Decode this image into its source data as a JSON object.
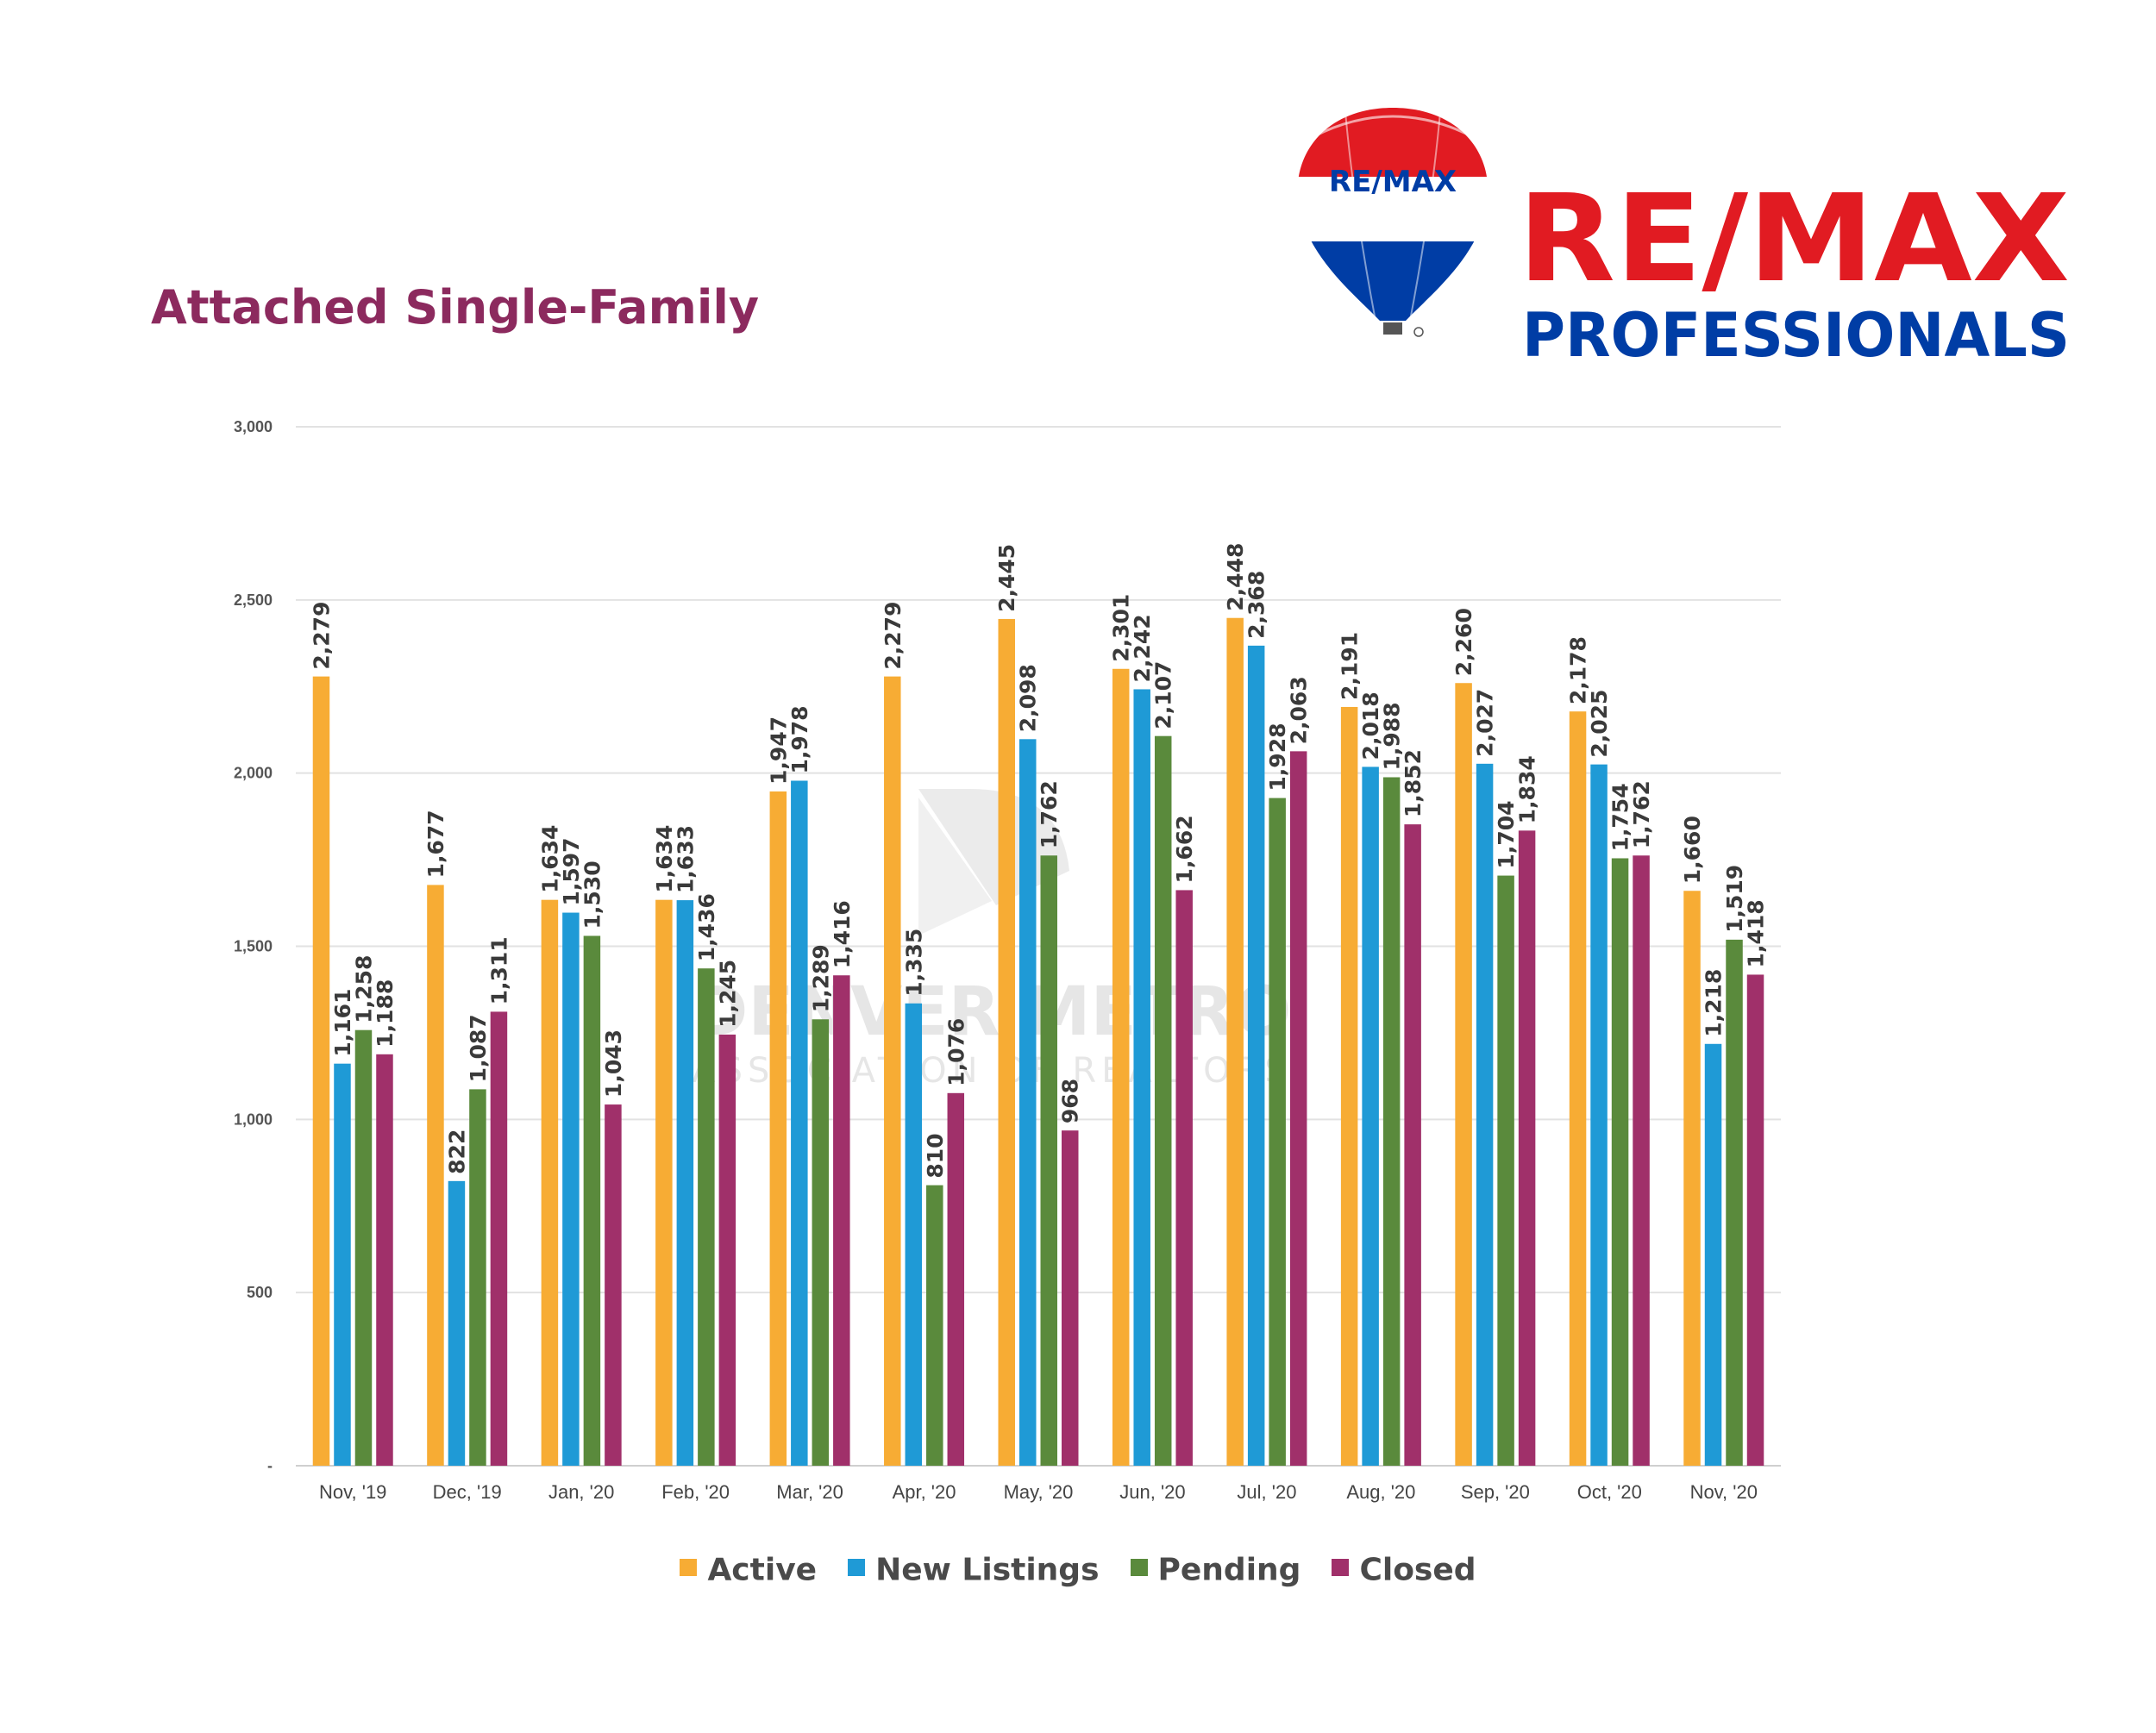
{
  "title": "Attached Single-Family",
  "logo": {
    "balloon_text": "RE/MAX",
    "brand_line1": "RE/MAX",
    "brand_line2": "PROFESSIONALS",
    "red": "#e11b22",
    "blue": "#003da5"
  },
  "watermark": {
    "line1": "DENVER METRO",
    "line2": "ASSOCIATION OF REALTORS"
  },
  "chart_data": {
    "type": "bar",
    "categories": [
      "Nov, '19",
      "Dec, '19",
      "Jan, '20",
      "Feb, '20",
      "Mar, '20",
      "Apr, '20",
      "May, '20",
      "Jun, '20",
      "Jul, '20",
      "Aug, '20",
      "Sep, '20",
      "Oct, '20",
      "Nov, '20"
    ],
    "ylim": [
      0,
      3000
    ],
    "yticks": [
      0,
      500,
      1000,
      1500,
      2000,
      2500,
      3000
    ],
    "ytick_labels": [
      "-",
      "500",
      "1,000",
      "1,500",
      "2,000",
      "2,500",
      "3,000"
    ],
    "grid": true,
    "legend_position": "bottom",
    "series": [
      {
        "name": "Active",
        "color": "#f7ac34",
        "values": [
          2279,
          1677,
          1634,
          1634,
          1947,
          2279,
          2445,
          2301,
          2448,
          2191,
          2260,
          2178,
          1660
        ]
      },
      {
        "name": "New Listings",
        "color": "#1f9ad6",
        "values": [
          1161,
          822,
          1597,
          1633,
          1978,
          1335,
          2098,
          2242,
          2368,
          2018,
          2027,
          2025,
          1218
        ]
      },
      {
        "name": "Pending",
        "color": "#5a8a3c",
        "values": [
          1258,
          1087,
          1530,
          1436,
          1289,
          810,
          1762,
          2107,
          1928,
          1988,
          1704,
          1754,
          1519
        ]
      },
      {
        "name": "Closed",
        "color": "#a0306a",
        "values": [
          1188,
          1311,
          1043,
          1245,
          1416,
          1076,
          968,
          1662,
          2063,
          1852,
          1834,
          1762,
          1418
        ]
      }
    ]
  }
}
